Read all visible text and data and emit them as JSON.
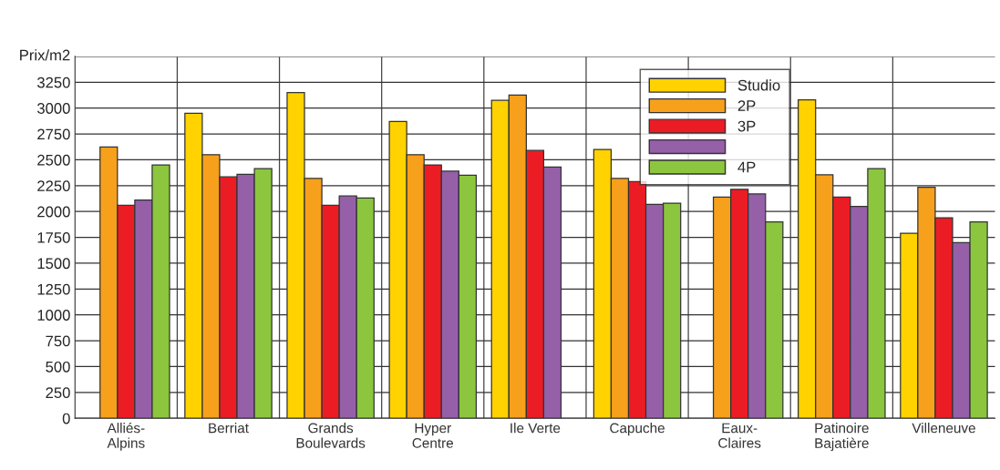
{
  "chart_data": {
    "type": "bar",
    "ylabel": "Prix/m2",
    "categories": [
      "Alliés-\nAlpins",
      "Berriat",
      "Grands\nBoulevards",
      "Hyper\nCentre",
      "Ile Verte",
      "Capuche",
      "Eaux-\nClaires",
      "Patinoire\nBajatière",
      "Villeneuve"
    ],
    "series": [
      {
        "name": "Studio",
        "color": "#ffd200",
        "values": [
          null,
          2950,
          3150,
          2870,
          3075,
          2600,
          null,
          3080,
          1790
        ]
      },
      {
        "name": "2P",
        "color": "#f7a01c",
        "values": [
          2625,
          2550,
          2320,
          2550,
          3125,
          2320,
          2140,
          2355,
          2235
        ]
      },
      {
        "name": "3P",
        "color": "#ec1c24",
        "values": [
          2060,
          2335,
          2060,
          2450,
          2590,
          2290,
          2215,
          2140,
          1940
        ]
      },
      {
        "color": "#9560a8",
        "values": [
          2110,
          2360,
          2150,
          2390,
          2430,
          2070,
          2170,
          2050,
          1700
        ]
      },
      {
        "name": "4P",
        "color": "#8cc63f",
        "values": [
          2450,
          2415,
          2130,
          2350,
          null,
          2080,
          1900,
          2415,
          1900
        ]
      }
    ],
    "ylim": [
      0,
      3500
    ],
    "yticks": [
      0,
      250,
      500,
      750,
      1000,
      1250,
      1500,
      1750,
      2000,
      2250,
      2500,
      2750,
      3000,
      3250
    ],
    "grid": true,
    "legend": "top right"
  }
}
